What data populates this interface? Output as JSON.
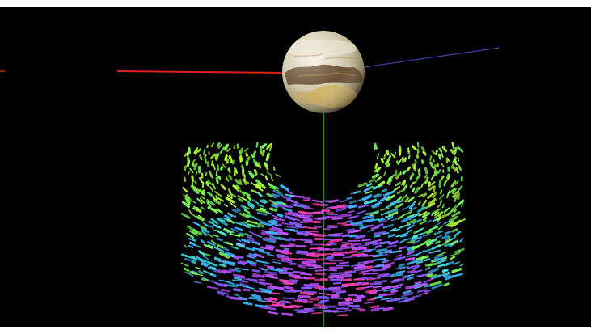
{
  "scene": {
    "background_color": "#000000",
    "page_background_color": "#ffffff",
    "planet": {
      "icon": "planet-globe-icon",
      "colors": [
        "#d8d2c4",
        "#c8ad6a",
        "#6b4a2a",
        "#e8e0c8"
      ]
    },
    "axes": {
      "x_axis_color": "#e02020",
      "y_axis_color": "#20c040",
      "z_axis_color": "#3a3a9a"
    },
    "particle_field": {
      "icon": "vector-field-particles-icon",
      "palette": [
        "#ff3fb0",
        "#c050ff",
        "#8a5cff",
        "#3fb8ff",
        "#3fe0e0",
        "#7dff5a",
        "#b8ff3a"
      ]
    }
  }
}
